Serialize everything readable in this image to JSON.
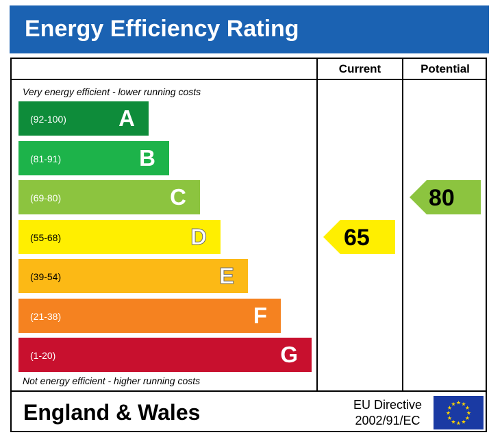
{
  "header": {
    "title": "Energy Efficiency Rating"
  },
  "columns": {
    "current": "Current",
    "potential": "Potential"
  },
  "notes": {
    "top": "Very energy efficient - lower running costs",
    "bottom": "Not energy efficient - higher running costs"
  },
  "footer": {
    "region": "England & Wales",
    "directive_line1": "EU Directive",
    "directive_line2": "2002/91/EC",
    "flag_icon": "eu-flag-icon"
  },
  "chart_data": {
    "type": "bar",
    "title": "Energy Efficiency Rating",
    "categories": [
      "A",
      "B",
      "C",
      "D",
      "E",
      "F",
      "G"
    ],
    "bands": [
      {
        "letter": "A",
        "range": "(92-100)",
        "min": 92,
        "max": 100,
        "color": "#0e8c3a"
      },
      {
        "letter": "B",
        "range": "(81-91)",
        "min": 81,
        "max": 91,
        "color": "#1db34a"
      },
      {
        "letter": "C",
        "range": "(69-80)",
        "min": 69,
        "max": 80,
        "color": "#8cc43f"
      },
      {
        "letter": "D",
        "range": "(55-68)",
        "min": 55,
        "max": 68,
        "color": "#ffef00"
      },
      {
        "letter": "E",
        "range": "(39-54)",
        "min": 39,
        "max": 54,
        "color": "#fcb915"
      },
      {
        "letter": "F",
        "range": "(21-38)",
        "min": 21,
        "max": 38,
        "color": "#f58220"
      },
      {
        "letter": "G",
        "range": "(1-20)",
        "min": 1,
        "max": 20,
        "color": "#c8102e"
      }
    ],
    "current": {
      "value": 65,
      "band": "D",
      "color": "#ffef00"
    },
    "potential": {
      "value": 80,
      "band": "C",
      "color": "#8cc43f"
    }
  }
}
